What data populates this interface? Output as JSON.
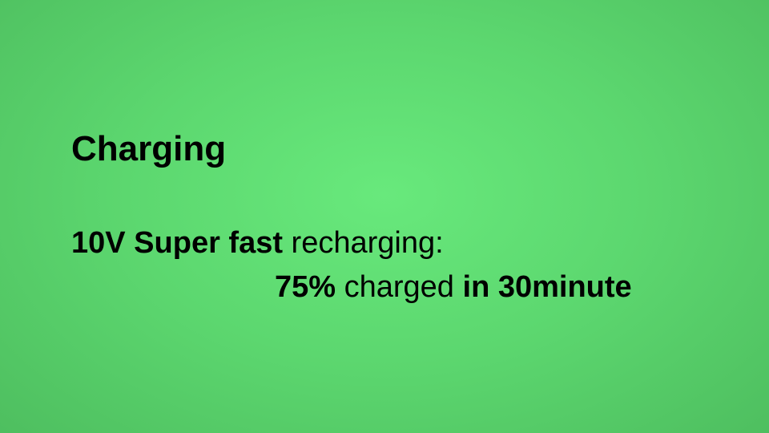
{
  "slide": {
    "background_color": "#5cd76f",
    "title": "Charging",
    "line1": {
      "bold_part": "10V Super fast",
      "regular_part": " recharging:"
    },
    "line2": {
      "bold_percent": "75%",
      "regular_part": " charged ",
      "bold_time": "in 30minute"
    }
  }
}
